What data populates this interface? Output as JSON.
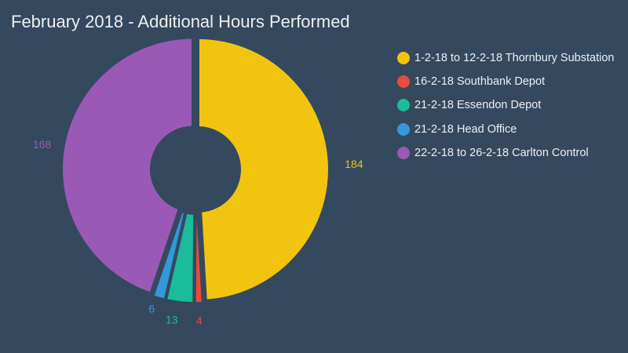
{
  "title": "February 2018 - Additional Hours Performed",
  "background": "#34495e",
  "chart_data": {
    "type": "pie",
    "variant": "donut",
    "title": "February 2018 - Additional Hours Performed",
    "categories": [
      "1-2-18 to 12-2-18 Thornbury Substation",
      "16-2-18 Southbank Depot",
      "21-2-18 Essendon Depot",
      "21-2-18 Head Office",
      "22-2-18 to 26-2-18 Carlton Control"
    ],
    "values": [
      184,
      4,
      13,
      6,
      168
    ],
    "colors": [
      "#f1c40f",
      "#e74c3c",
      "#1abc9c",
      "#3498db",
      "#9b59b6"
    ],
    "data_labels": [
      "184",
      "4",
      "13",
      "6",
      "168"
    ],
    "legend_position": "right"
  },
  "legend": {
    "items": [
      {
        "label": "1-2-18 to 12-2-18 Thornbury Substation",
        "color": "#f1c40f"
      },
      {
        "label": "16-2-18 Southbank Depot",
        "color": "#e74c3c"
      },
      {
        "label": "21-2-18 Essendon Depot",
        "color": "#1abc9c"
      },
      {
        "label": "21-2-18 Head Office",
        "color": "#3498db"
      },
      {
        "label": "22-2-18 to 26-2-18 Carlton Control",
        "color": "#9b59b6"
      }
    ]
  }
}
